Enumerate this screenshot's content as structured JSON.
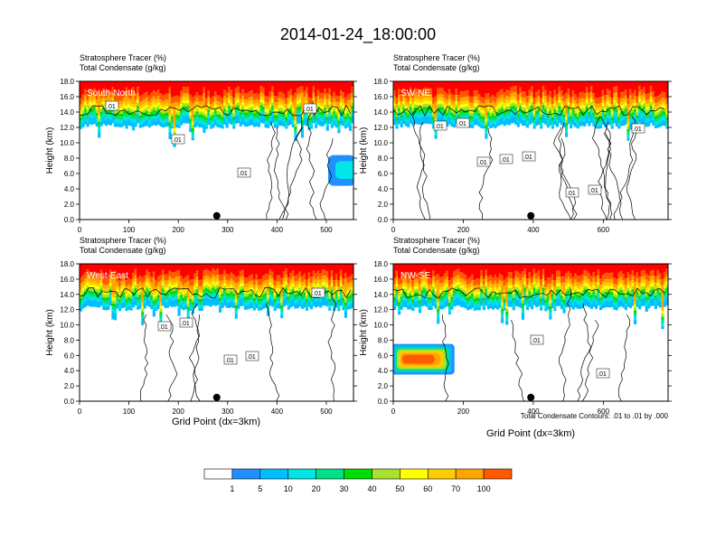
{
  "title": "2014-01-24_18:00:00",
  "panel_titles": {
    "line1": "Stratosphere Tracer   (%)",
    "line2": "Total Condensate   (g/kg)"
  },
  "ylabel": "Height (km)",
  "xlabel": "Grid Point (dx=3km)",
  "contour_note": "Total Condensate Contours: .01 to .01 by .000",
  "colorbar": {
    "labels": [
      "1",
      "5",
      "10",
      "20",
      "30",
      "40",
      "50",
      "60",
      "70",
      "100"
    ],
    "colors": [
      "#ffffff",
      "#1e90ff",
      "#00bfff",
      "#00e5e5",
      "#00e08a",
      "#00dd00",
      "#a6e22e",
      "#ffff00",
      "#ffcc00",
      "#ffa500",
      "#ff5a00",
      "#ff0000"
    ]
  },
  "chart_data": [
    {
      "type": "heatmap",
      "panel": "South-North",
      "xlim": [
        0,
        555
      ],
      "ylim": [
        0,
        18
      ],
      "xticks": [
        0,
        100,
        200,
        300,
        400,
        500
      ],
      "yticks": [
        0.0,
        2.0,
        4.0,
        6.0,
        8.0,
        10.0,
        12.0,
        14.0,
        16.0,
        18.0
      ],
      "label_x": 278,
      "contour_labels": [
        ".01",
        ".01",
        ".01",
        ".01"
      ],
      "plume": null
    },
    {
      "type": "heatmap",
      "panel": "SW-NE",
      "xlim": [
        0,
        785
      ],
      "ylim": [
        0,
        18
      ],
      "xticks": [
        0,
        200,
        400,
        600
      ],
      "yticks": [
        0.0,
        2.0,
        4.0,
        6.0,
        8.0,
        10.0,
        12.0,
        14.0,
        16.0,
        18.0
      ],
      "label_x": 393,
      "contour_labels": [
        ".01",
        ".01",
        ".01",
        ".01",
        ".01",
        ".01",
        ".01",
        ".01"
      ],
      "plume": null
    },
    {
      "type": "heatmap",
      "panel": "West-East",
      "xlim": [
        0,
        555
      ],
      "ylim": [
        0,
        18
      ],
      "xticks": [
        0,
        100,
        200,
        300,
        400,
        500
      ],
      "yticks": [
        0.0,
        2.0,
        4.0,
        6.0,
        8.0,
        10.0,
        12.0,
        14.0,
        16.0,
        18.0
      ],
      "label_x": 278,
      "contour_labels": [
        ".01",
        ".01",
        ".01",
        ".01",
        ".01"
      ],
      "plume": null
    },
    {
      "type": "heatmap",
      "panel": "NW-SE",
      "xlim": [
        0,
        785
      ],
      "ylim": [
        0,
        18
      ],
      "xticks": [
        0,
        200,
        400,
        600
      ],
      "yticks": [
        0.0,
        2.0,
        4.0,
        6.0,
        8.0,
        10.0,
        12.0,
        14.0,
        16.0,
        18.0
      ],
      "label_x": 393,
      "contour_labels": [
        ".01",
        ".01"
      ],
      "plume": {
        "x": [
          0,
          180
        ],
        "y": [
          3.5,
          7.5
        ]
      }
    }
  ]
}
